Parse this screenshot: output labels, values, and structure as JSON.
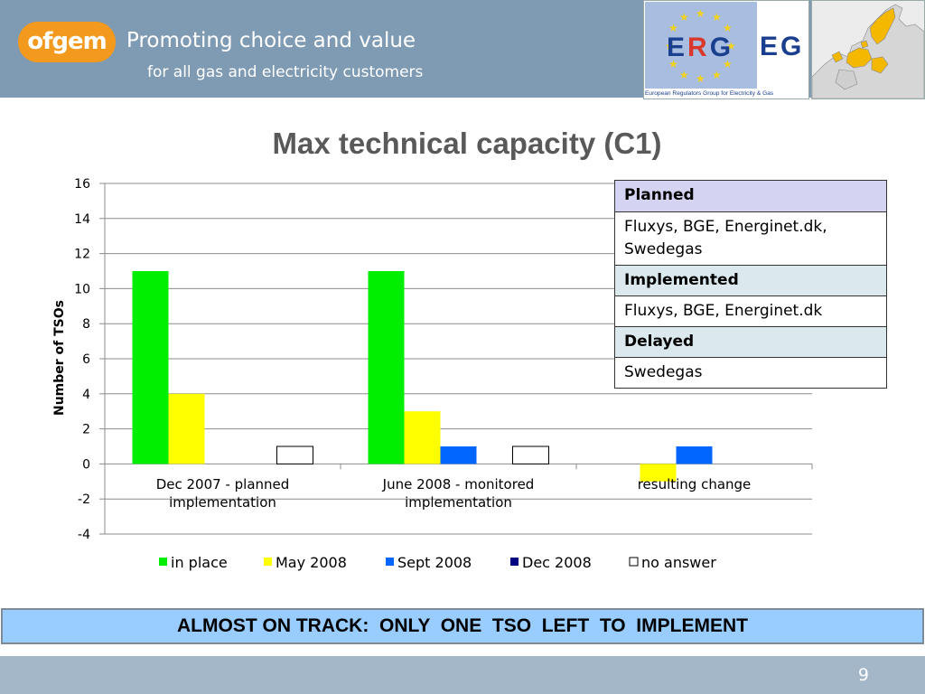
{
  "header": {
    "logo_text": "ofgem",
    "tagline_line1": "Promoting choice and value",
    "tagline_line2": "for all gas and electricity customers",
    "erg_logo_text": "European Regulators Group for Electricity & Gas"
  },
  "title": "Max technical capacity (C1)",
  "chart_data": {
    "type": "bar",
    "ylabel": "Number  of  TSOs",
    "ylim": [
      -4,
      16
    ],
    "yticks": [
      16,
      14,
      12,
      10,
      8,
      6,
      4,
      2,
      0,
      -2,
      -4
    ],
    "grid": true,
    "legend_position": "bottom",
    "categories": [
      "Dec 2007 - planned implementation",
      "June 2008 - monitored implementation",
      "resulting change"
    ],
    "category_lines": [
      [
        "Dec 2007 - planned",
        "implementation"
      ],
      [
        "June 2008 - monitored",
        "implementation"
      ],
      [
        "resulting change"
      ]
    ],
    "series": [
      {
        "name": "in place",
        "color": "#00ee00",
        "values": [
          11,
          11,
          0
        ]
      },
      {
        "name": "May 2008",
        "color": "#ffff00",
        "values": [
          4,
          3,
          -1
        ]
      },
      {
        "name": "Sept 2008",
        "color": "#0066ff",
        "values": [
          0,
          1,
          1
        ]
      },
      {
        "name": "Dec 2008",
        "color": "#000080",
        "values": [
          0,
          0,
          0
        ]
      },
      {
        "name": "no answer",
        "color": "#ffffff",
        "values": [
          1,
          1,
          0
        ]
      }
    ]
  },
  "info_table": {
    "planned_label": "Planned",
    "planned_value": "Fluxys, BGE, Energinet.dk, Swedegas",
    "implemented_label": "Implemented",
    "implemented_value": "Fluxys, BGE, Energinet.dk",
    "delayed_label": "Delayed",
    "delayed_value": "Swedegas"
  },
  "banner": "ALMOST ON TRACK:  ONLY  ONE  TSO  LEFT  TO  IMPLEMENT",
  "page_number": "9",
  "colors": {
    "header_bg": "#7f9bb4",
    "ofgem_orange": "#f39a1e",
    "banner_bg": "#99ccff",
    "footer_bg": "#a3b7c9"
  }
}
